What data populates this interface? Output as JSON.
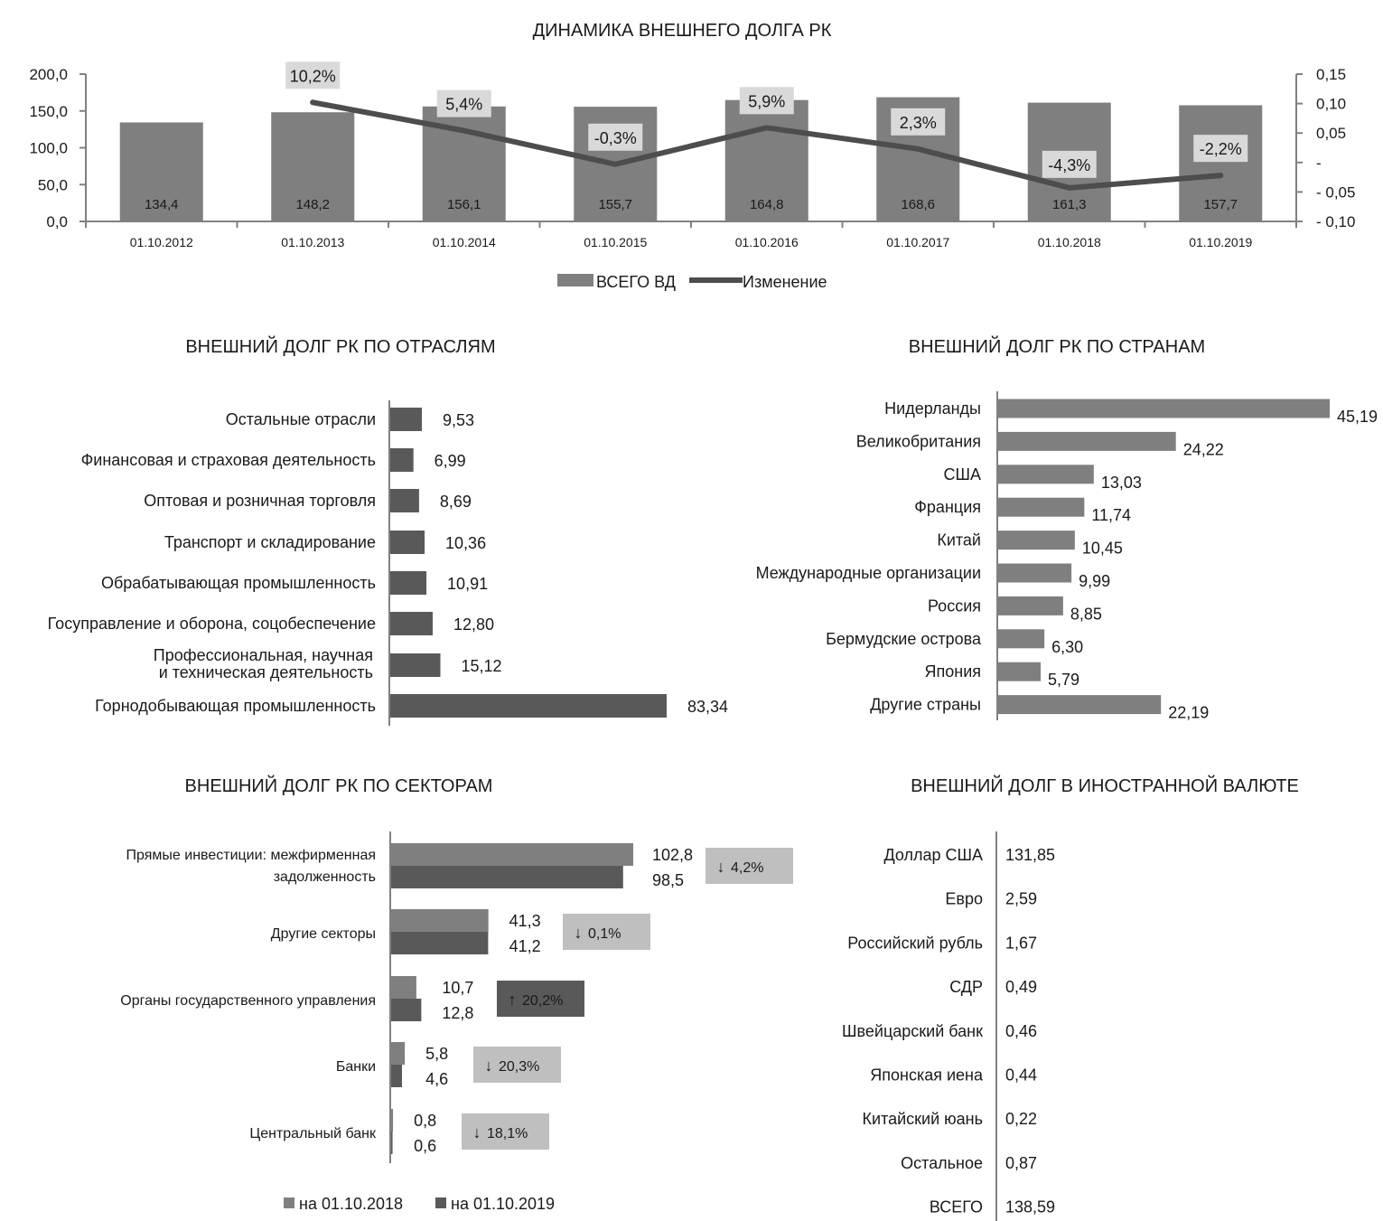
{
  "colors": {
    "bar_light": "#7f7f7f",
    "bar_dark": "#595959",
    "line": "#4d4d4d",
    "axis": "#808080",
    "label_bg_light": "#d9d9d9",
    "badge_light": "#bfbfbf",
    "badge_dark": "#595959"
  },
  "chart_data": [
    {
      "id": "dynamics",
      "type": "bar+line",
      "title": "ДИНАМИКА ВНЕШНЕГО ДОЛГА РК",
      "categories": [
        "01.10.2012",
        "01.10.2013",
        "01.10.2014",
        "01.10.2015",
        "01.10.2016",
        "01.10.2017",
        "01.10.2018",
        "01.10.2019"
      ],
      "series": [
        {
          "name": "ВСЕГО ВД",
          "type": "bar",
          "axis": "left",
          "values": [
            134.4,
            148.2,
            156.1,
            155.7,
            164.8,
            168.6,
            161.3,
            157.7
          ],
          "labels": [
            "134,4",
            "148,2",
            "156,1",
            "155,7",
            "164,8",
            "168,6",
            "161,3",
            "157,7"
          ]
        },
        {
          "name": "Изменение",
          "type": "line",
          "axis": "right",
          "values": [
            null,
            0.102,
            0.054,
            -0.003,
            0.059,
            0.023,
            -0.043,
            -0.022
          ],
          "labels": [
            "",
            "10,2%",
            "5,4%",
            "-0,3%",
            "5,9%",
            "2,3%",
            "-4,3%",
            "-2,2%"
          ]
        }
      ],
      "y_left": {
        "min": 0,
        "max": 200,
        "ticks": [
          "0,0",
          "50,0",
          "100,0",
          "150,0",
          "200,0"
        ]
      },
      "y_right": {
        "min": -0.1,
        "max": 0.15,
        "ticks": [
          "- 0,10",
          "- 0,05",
          "-",
          "0,05",
          "0,10",
          "0,15"
        ]
      },
      "legend": [
        "ВСЕГО ВД",
        "Изменение"
      ]
    },
    {
      "id": "sectors_industry",
      "type": "bar",
      "orientation": "horizontal",
      "title": "ВНЕШНИЙ ДОЛГ РК ПО ОТРАСЛЯМ",
      "categories": [
        [
          "Остальные отрасли"
        ],
        [
          "Финансовая и страховая деятельность"
        ],
        [
          "Оптовая и розничная торговля"
        ],
        [
          "Транспорт и складирование"
        ],
        [
          "Обрабатывающая промышленность"
        ],
        [
          "Госуправление  и оборона, соцобеспечение"
        ],
        [
          "Профессиональная, научная",
          "и техническая деятельность"
        ],
        [
          "Горнодобывающая промышленность"
        ]
      ],
      "values": [
        9.53,
        6.99,
        8.69,
        10.36,
        10.91,
        12.8,
        15.12,
        83.34
      ],
      "labels": [
        "9,53",
        "6,99",
        "8,69",
        "10,36",
        "10,91",
        "12,80",
        "15,12",
        "83,34"
      ]
    },
    {
      "id": "countries",
      "type": "bar",
      "orientation": "horizontal",
      "title": "ВНЕШНИЙ ДОЛГ РК ПО СТРАНАМ",
      "categories": [
        "Нидерланды",
        "Великобритания",
        "США",
        "Франция",
        "Китай",
        "Международные организации",
        "Россия",
        "Бермудские острова",
        "Япония",
        "Другие страны"
      ],
      "values": [
        45.19,
        24.22,
        13.03,
        11.74,
        10.45,
        9.99,
        8.85,
        6.3,
        5.79,
        22.19
      ],
      "labels": [
        "45,19",
        "24,22",
        "13,03",
        "11,74",
        "10,45",
        "9,99",
        "8,85",
        "6,30",
        "5,79",
        "22,19"
      ]
    },
    {
      "id": "by_sector",
      "type": "bar",
      "orientation": "horizontal",
      "title": "ВНЕШНИЙ ДОЛГ РК ПО СЕКТОРАМ",
      "categories": [
        [
          "Прямые инвестиции: межфирменная",
          "задолженность"
        ],
        [
          "Другие секторы"
        ],
        [
          "Органы государственного управления"
        ],
        [
          "Банки"
        ],
        [
          "Центральный банк"
        ]
      ],
      "series": [
        {
          "name": "на 01.10.2018",
          "values": [
            102.8,
            41.3,
            10.7,
            5.8,
            0.8
          ],
          "labels": [
            "102,8",
            "41,3",
            "10,7",
            "5,8",
            "0,8"
          ]
        },
        {
          "name": "на 01.10.2019",
          "values": [
            98.5,
            41.2,
            12.8,
            4.6,
            0.6
          ],
          "labels": [
            "98,5",
            "41,2",
            "12,8",
            "4,6",
            "0,6"
          ]
        }
      ],
      "changes": [
        {
          "dir": "down",
          "text": "4,2%"
        },
        {
          "dir": "down",
          "text": "0,1%"
        },
        {
          "dir": "up",
          "text": "20,2%"
        },
        {
          "dir": "down",
          "text": "20,3%"
        },
        {
          "dir": "down",
          "text": "18,1%"
        }
      ],
      "legend": [
        "на 01.10.2018",
        "на 01.10.2019"
      ]
    },
    {
      "id": "currency",
      "type": "table",
      "title": "ВНЕШНИЙ ДОЛГ В ИНОСТРАННОЙ ВАЛЮТЕ",
      "rows": [
        {
          "label": "Доллар США",
          "value": "131,85"
        },
        {
          "label": "Евро",
          "value": "2,59"
        },
        {
          "label": "Российский рубль",
          "value": "1,67"
        },
        {
          "label": "СДР",
          "value": "0,49"
        },
        {
          "label": "Швейцарский банк",
          "value": "0,46"
        },
        {
          "label": "Японская иена",
          "value": "0,44"
        },
        {
          "label": "Китайский юань",
          "value": "0,22"
        },
        {
          "label": "Остальное",
          "value": "0,87"
        },
        {
          "label": "ВСЕГО",
          "value": "138,59"
        }
      ]
    }
  ]
}
